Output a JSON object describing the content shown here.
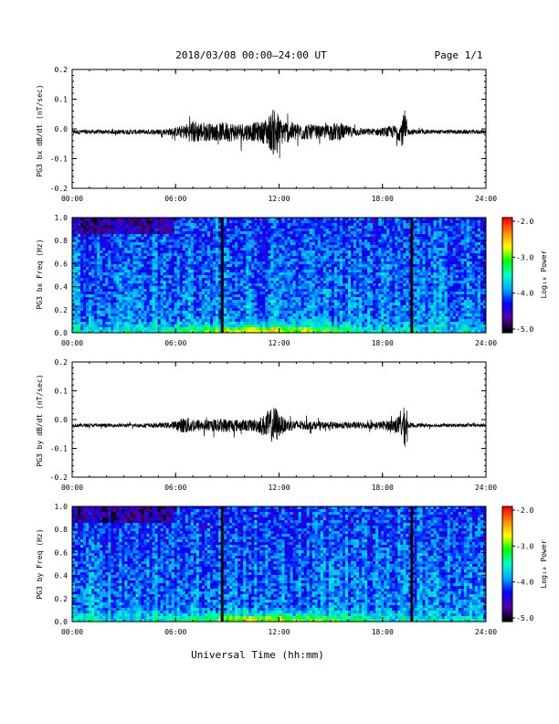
{
  "header": {
    "title": "2018/03/08   00:00–24:00 UT",
    "page": "Page 1/1"
  },
  "xaxis": {
    "title": "Universal Time (hh:mm)",
    "ticks": [
      "00:00",
      "06:00",
      "12:00",
      "18:00",
      "24:00"
    ]
  },
  "panel_labels": {
    "bx_wave": "PG3 bx dB/dt (nT/sec)",
    "bx_spec": "PG3 bx Freq (Hz)",
    "by_wave": "PG3 by dB/dt (nT/sec)",
    "by_spec": "PG3 by Freq (Hz)"
  },
  "colorbar": {
    "label": "Log₁₀ Power",
    "ticks": [
      "-2.0",
      "-3.0",
      "-4.0",
      "-5.0"
    ],
    "colors": [
      "#000000",
      "#5500aa",
      "#0000ff",
      "#00aaff",
      "#00ffcc",
      "#00ff00",
      "#ffff00",
      "#ff8800",
      "#ff0000"
    ]
  },
  "chart_data": [
    {
      "type": "line",
      "name": "bx_wave",
      "ylabel": "PG3 bx dB/dt (nT/sec)",
      "xlabel": "Universal Time (hh:mm)",
      "xlim": [
        0,
        24
      ],
      "ylim": [
        -0.2,
        0.2
      ],
      "yticks": [
        "0.2",
        "0.1",
        "0.0",
        "-0.1",
        "-0.2"
      ],
      "xticks": [
        "00:00",
        "06:00",
        "12:00",
        "18:00",
        "24:00"
      ],
      "envelope_x": [
        0,
        1,
        2,
        3,
        4,
        5,
        5.5,
        6,
        6.5,
        7,
        7.5,
        8,
        8.5,
        9,
        9.5,
        10,
        10.5,
        11,
        11.3,
        11.6,
        11.8,
        12,
        12.3,
        12.7,
        13,
        13.5,
        14,
        14.5,
        15,
        15.5,
        16,
        16.5,
        17,
        17.5,
        18,
        18.5,
        19.0,
        19.3,
        19.5,
        20,
        21,
        22,
        23,
        24
      ],
      "envelope_amp": [
        0.008,
        0.007,
        0.007,
        0.008,
        0.008,
        0.009,
        0.012,
        0.015,
        0.025,
        0.04,
        0.035,
        0.03,
        0.03,
        0.035,
        0.03,
        0.03,
        0.032,
        0.035,
        0.05,
        0.07,
        0.1,
        0.05,
        0.04,
        0.035,
        0.03,
        0.028,
        0.025,
        0.02,
        0.03,
        0.03,
        0.02,
        0.015,
        0.012,
        0.012,
        0.015,
        0.02,
        0.03,
        0.075,
        0.01,
        0.008,
        0.007,
        0.007,
        0.007,
        0.007
      ],
      "baseline": -0.01
    },
    {
      "type": "heatmap",
      "name": "bx_spec",
      "ylabel": "PG3 bx Freq (Hz)",
      "xlabel": "Universal Time (hh:mm)",
      "xlim": [
        0,
        24
      ],
      "ylim": [
        0,
        1
      ],
      "yticks": [
        "1.0",
        "0.8",
        "0.6",
        "0.4",
        "0.2",
        "0.0"
      ],
      "xticks": [
        "00:00",
        "06:00",
        "12:00",
        "18:00",
        "24:00"
      ],
      "zlim": [
        -5.0,
        -2.0
      ],
      "vertical_gaps": [
        8.7,
        19.7
      ]
    },
    {
      "type": "line",
      "name": "by_wave",
      "ylabel": "PG3 by dB/dt (nT/sec)",
      "xlabel": "Universal Time (hh:mm)",
      "xlim": [
        0,
        24
      ],
      "ylim": [
        -0.2,
        0.2
      ],
      "yticks": [
        "0.2",
        "0.1",
        "0.0",
        "-0.1",
        "-0.2"
      ],
      "xticks": [
        "00:00",
        "06:00",
        "12:00",
        "18:00",
        "24:00"
      ],
      "envelope_x": [
        0,
        1,
        2,
        3,
        4,
        5,
        5.5,
        6,
        6.5,
        7,
        7.5,
        8,
        8.5,
        9,
        9.5,
        10,
        10.5,
        11,
        11.3,
        11.6,
        11.8,
        12,
        12.3,
        12.7,
        13,
        13.5,
        14,
        14.5,
        15,
        15.5,
        16,
        16.5,
        17,
        17.5,
        18,
        18.5,
        19.0,
        19.3,
        19.5,
        20,
        21,
        22,
        23,
        24
      ],
      "envelope_amp": [
        0.006,
        0.006,
        0.006,
        0.006,
        0.007,
        0.008,
        0.01,
        0.015,
        0.03,
        0.025,
        0.02,
        0.02,
        0.022,
        0.025,
        0.022,
        0.02,
        0.022,
        0.03,
        0.05,
        0.06,
        0.07,
        0.04,
        0.025,
        0.02,
        0.018,
        0.016,
        0.014,
        0.012,
        0.012,
        0.012,
        0.012,
        0.012,
        0.011,
        0.012,
        0.015,
        0.02,
        0.035,
        0.07,
        0.01,
        0.007,
        0.006,
        0.006,
        0.006,
        0.006
      ],
      "baseline": -0.02
    },
    {
      "type": "heatmap",
      "name": "by_spec",
      "ylabel": "PG3 by Freq (Hz)",
      "xlabel": "Universal Time (hh:mm)",
      "xlim": [
        0,
        24
      ],
      "ylim": [
        0,
        1
      ],
      "yticks": [
        "1.0",
        "0.8",
        "0.6",
        "0.4",
        "0.2",
        "0.0"
      ],
      "xticks": [
        "00:00",
        "06:00",
        "12:00",
        "18:00",
        "24:00"
      ],
      "zlim": [
        -5.0,
        -2.0
      ],
      "vertical_gaps": [
        8.7,
        19.7
      ]
    }
  ]
}
